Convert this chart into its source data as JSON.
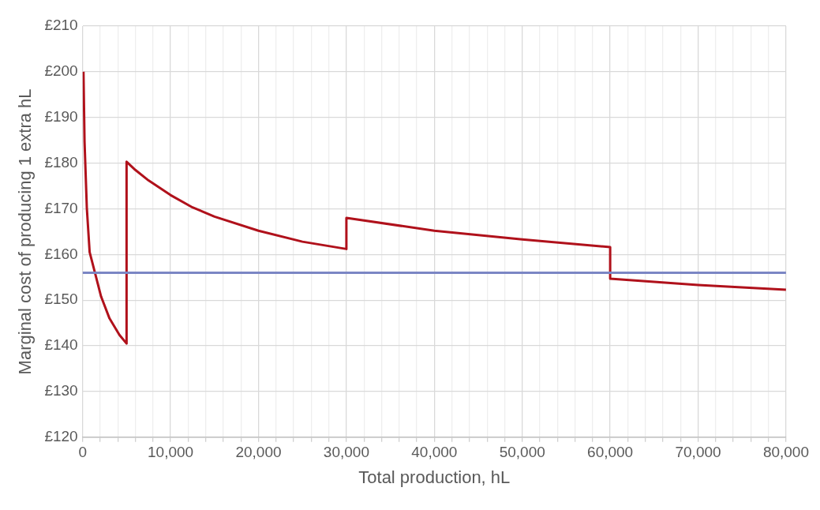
{
  "chart_data": {
    "type": "line",
    "xlabel": "Total production, hL",
    "ylabel": "Marginal cost of producing 1 extra hL",
    "series": [
      {
        "color": "#b0111b",
        "x": [
          100,
          220,
          480,
          800,
          1380,
          2100,
          3060,
          4190,
          5000,
          5000,
          6000,
          7500,
          10000,
          12500,
          15000,
          20000,
          25000,
          30000,
          30000,
          40000,
          50000,
          60000,
          60000,
          70000,
          80000
        ],
        "values": [
          200,
          184.7,
          170.2,
          160.5,
          156.2,
          150.8,
          146,
          142.4,
          140.5,
          180.3,
          178.5,
          176.2,
          173,
          170.3,
          168.3,
          165.2,
          162.8,
          161.2,
          168,
          165.2,
          163.3,
          161.6,
          154.7,
          153.3,
          152.3
        ]
      }
    ],
    "ref_lines": [
      {
        "axis": "y",
        "value": 156,
        "color": "#7b86c4"
      }
    ],
    "xlim": [
      0,
      80000
    ],
    "ylim": [
      120,
      210
    ],
    "xticks": [
      {
        "value": 0,
        "label": "0"
      },
      {
        "value": 2000,
        "label": null
      },
      {
        "value": 4000,
        "label": null
      },
      {
        "value": 6000,
        "label": null
      },
      {
        "value": 8000,
        "label": null
      },
      {
        "value": 10000,
        "label": "10,000"
      },
      {
        "value": 12000,
        "label": null
      },
      {
        "value": 14000,
        "label": null
      },
      {
        "value": 16000,
        "label": null
      },
      {
        "value": 18000,
        "label": null
      },
      {
        "value": 20000,
        "label": "20,000"
      },
      {
        "value": 22000,
        "label": null
      },
      {
        "value": 24000,
        "label": null
      },
      {
        "value": 26000,
        "label": null
      },
      {
        "value": 28000,
        "label": null
      },
      {
        "value": 30000,
        "label": "30,000"
      },
      {
        "value": 32000,
        "label": null
      },
      {
        "value": 34000,
        "label": null
      },
      {
        "value": 36000,
        "label": null
      },
      {
        "value": 38000,
        "label": null
      },
      {
        "value": 40000,
        "label": "40,000"
      },
      {
        "value": 42000,
        "label": null
      },
      {
        "value": 44000,
        "label": null
      },
      {
        "value": 46000,
        "label": null
      },
      {
        "value": 48000,
        "label": null
      },
      {
        "value": 50000,
        "label": "50,000"
      },
      {
        "value": 52000,
        "label": null
      },
      {
        "value": 54000,
        "label": null
      },
      {
        "value": 56000,
        "label": null
      },
      {
        "value": 58000,
        "label": null
      },
      {
        "value": 60000,
        "label": "60,000"
      },
      {
        "value": 62000,
        "label": null
      },
      {
        "value": 64000,
        "label": null
      },
      {
        "value": 66000,
        "label": null
      },
      {
        "value": 68000,
        "label": null
      },
      {
        "value": 70000,
        "label": "70,000"
      },
      {
        "value": 72000,
        "label": null
      },
      {
        "value": 74000,
        "label": null
      },
      {
        "value": 76000,
        "label": null
      },
      {
        "value": 78000,
        "label": null
      },
      {
        "value": 80000,
        "label": "80,000"
      }
    ],
    "yticks": [
      {
        "value": 120,
        "label": "£120"
      },
      {
        "value": 130,
        "label": "£130"
      },
      {
        "value": 140,
        "label": "£140"
      },
      {
        "value": 150,
        "label": "£150"
      },
      {
        "value": 160,
        "label": "£160"
      },
      {
        "value": 170,
        "label": "£170"
      },
      {
        "value": 180,
        "label": "£180"
      },
      {
        "value": 190,
        "label": "£190"
      },
      {
        "value": 200,
        "label": "£200"
      },
      {
        "value": 210,
        "label": "£210"
      }
    ],
    "grid": true,
    "legend": false,
    "marker": "none",
    "line_style": "solid"
  }
}
